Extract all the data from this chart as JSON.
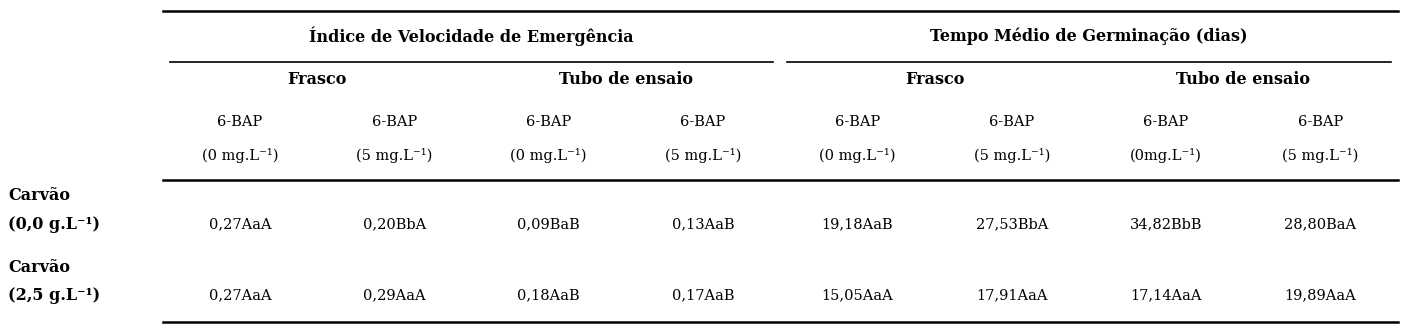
{
  "col_group1_label": "Índice de Velocidade de Emergência",
  "col_group2_label": "Tempo Médio de Germinação (dias)",
  "sub_group1a": "Frasco",
  "sub_group1b": "Tubo de ensaio",
  "sub_group2a": "Frasco",
  "sub_group2b": "Tubo de ensaio",
  "col_headers_line1": [
    "6-BAP",
    "6-BAP",
    "6-BAP",
    "6-BAP",
    "6-BAP",
    "6-BAP",
    "6-BAP",
    "6-BAP"
  ],
  "col_headers_line2": [
    "(0 mg.L⁻¹)",
    "(5 mg.L⁻¹)",
    "(0 mg.L⁻¹)",
    "(5 mg.L⁻¹)",
    "(0 mg.L⁻¹)",
    "(5 mg.L⁻¹)",
    "(0mg.L⁻¹)",
    "(5 mg.L⁻¹)"
  ],
  "row_label_line1": [
    "Carvão",
    "Carvão"
  ],
  "row_label_line2": [
    "(0,0 g.L⁻¹)",
    "(2,5 g.L⁻¹)"
  ],
  "data": [
    [
      "0,27AaA",
      "0,20BbA",
      "0,09BaB",
      "0,13AaB",
      "19,18AaB",
      "27,53BbA",
      "34,82BbB",
      "28,80BaA"
    ],
    [
      "0,27AaA",
      "0,29AaA",
      "0,18AaB",
      "0,17AaB",
      "15,05AaA",
      "17,91AaA",
      "17,14AaA",
      "19,89AaA"
    ]
  ],
  "background_color": "#ffffff",
  "text_color": "#000000",
  "fs_group": 11.5,
  "fs_sub": 11.5,
  "fs_col": 10.5,
  "fs_row": 11.5,
  "fs_data": 10.5
}
